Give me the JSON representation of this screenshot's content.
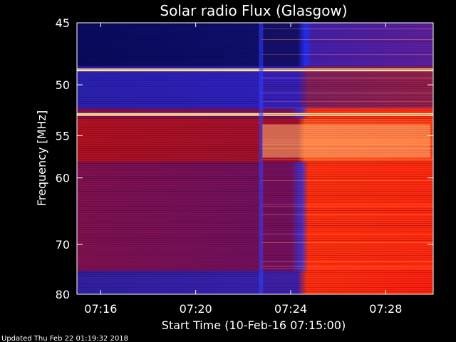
{
  "chart_data": {
    "type": "heatmap",
    "title": "Solar radio Flux (Glasgow)",
    "xlabel": "Start Time (10-Feb-16 07:15:00)",
    "ylabel": "Frequency [MHz]",
    "x_ticks": [
      "07:16",
      "07:20",
      "07:24",
      "07:28"
    ],
    "y_ticks": [
      "45",
      "50",
      "55",
      "60",
      "70",
      "80"
    ],
    "x_range": [
      "07:15:00",
      "07:30:00"
    ],
    "y_range": [
      45,
      80
    ],
    "event_time": "07:22:45",
    "bright_bands_mhz": [
      48.7,
      52.8
    ],
    "colors": {
      "low": "#0a0a8c",
      "mid_low": "#3a1aa8",
      "mid": "#b01030",
      "high": "#ff3010",
      "peak": "#ffb040"
    }
  },
  "footer": "Updated Thu Feb 22 01:19:32 2018"
}
